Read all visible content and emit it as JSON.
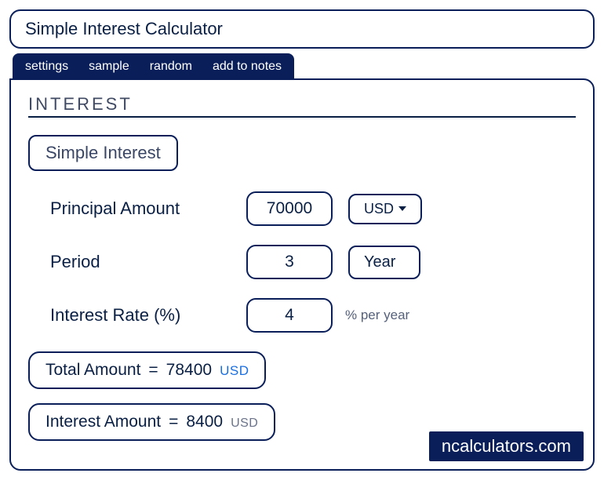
{
  "title": "Simple Interest Calculator",
  "tabs": {
    "settings": "settings",
    "sample": "sample",
    "random": "random",
    "add_to_notes": "add to notes"
  },
  "section_heading": "INTEREST",
  "mode_label": "Simple Interest",
  "inputs": {
    "principal": {
      "label": "Principal Amount",
      "value": "70000",
      "currency": "USD"
    },
    "period": {
      "label": "Period",
      "value": "3",
      "unit": "Year"
    },
    "rate": {
      "label": "Interest Rate (%)",
      "value": "4",
      "note": "% per year"
    }
  },
  "results": {
    "total": {
      "label": "Total Amount",
      "equals": "=",
      "value": "78400",
      "currency": "USD"
    },
    "interest": {
      "label": "Interest Amount",
      "equals": "=",
      "value": "8400",
      "currency": "USD"
    }
  },
  "brand": "ncalculators.com"
}
